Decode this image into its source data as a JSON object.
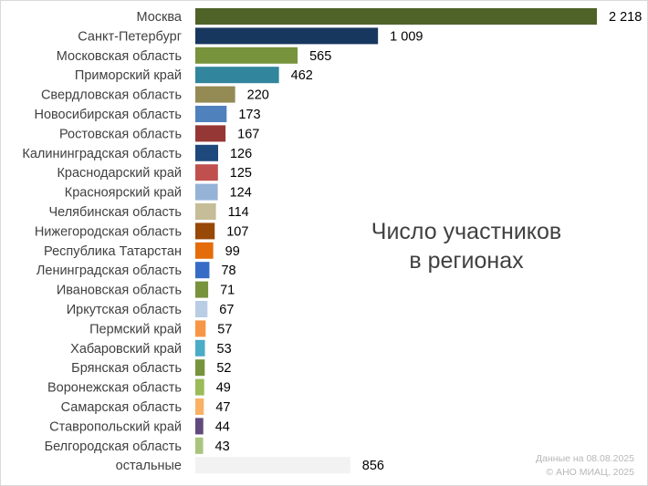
{
  "chart_data": {
    "type": "bar",
    "orientation": "horizontal",
    "title_lines": [
      "Число участников",
      "в регионах"
    ],
    "note_lines": [
      "Данные на 08.08.2025",
      "© АНО МИАЦ, 2025"
    ],
    "categories": [
      "Москва",
      "Санкт-Петербург",
      "Московская область",
      "Приморский край",
      "Свердловская область",
      "Новосибирская область",
      "Ростовская область",
      "Калининградская область",
      "Краснодарский край",
      "Красноярский край",
      "Челябинская область",
      "Нижегородская область",
      "Республика Татарстан",
      "Ленинградская область",
      "Ивановская область",
      "Иркутская область",
      "Пермский край",
      "Хабаровский край",
      "Брянская область",
      "Воронежская область",
      "Самарская область",
      "Ставропольский край",
      "Белгородская область",
      "остальные"
    ],
    "values": [
      2218,
      1009,
      565,
      462,
      220,
      173,
      167,
      126,
      125,
      124,
      114,
      107,
      99,
      78,
      71,
      67,
      57,
      53,
      52,
      49,
      47,
      44,
      43,
      856
    ],
    "value_labels": [
      "2 218",
      "1 009",
      "565",
      "462",
      "220",
      "173",
      "167",
      "126",
      "125",
      "124",
      "114",
      "107",
      "99",
      "78",
      "71",
      "67",
      "57",
      "53",
      "52",
      "49",
      "47",
      "44",
      "43",
      "856"
    ],
    "colors": [
      "#4f6228",
      "#17375e",
      "#77933c",
      "#31859c",
      "#948a54",
      "#4f81bd",
      "#953735",
      "#1f497d",
      "#c0504d",
      "#95b3d7",
      "#c4bd97",
      "#984807",
      "#e46c0a",
      "#366cc6",
      "#77933c",
      "#b9cde5",
      "#f79646",
      "#4bacc6",
      "#77933c",
      "#9bbb59",
      "#f9b265",
      "#604a7b",
      "#a9c47f",
      "#f2f2f2"
    ],
    "xlim": [
      0,
      2218
    ],
    "grid": false,
    "legend": "none"
  }
}
